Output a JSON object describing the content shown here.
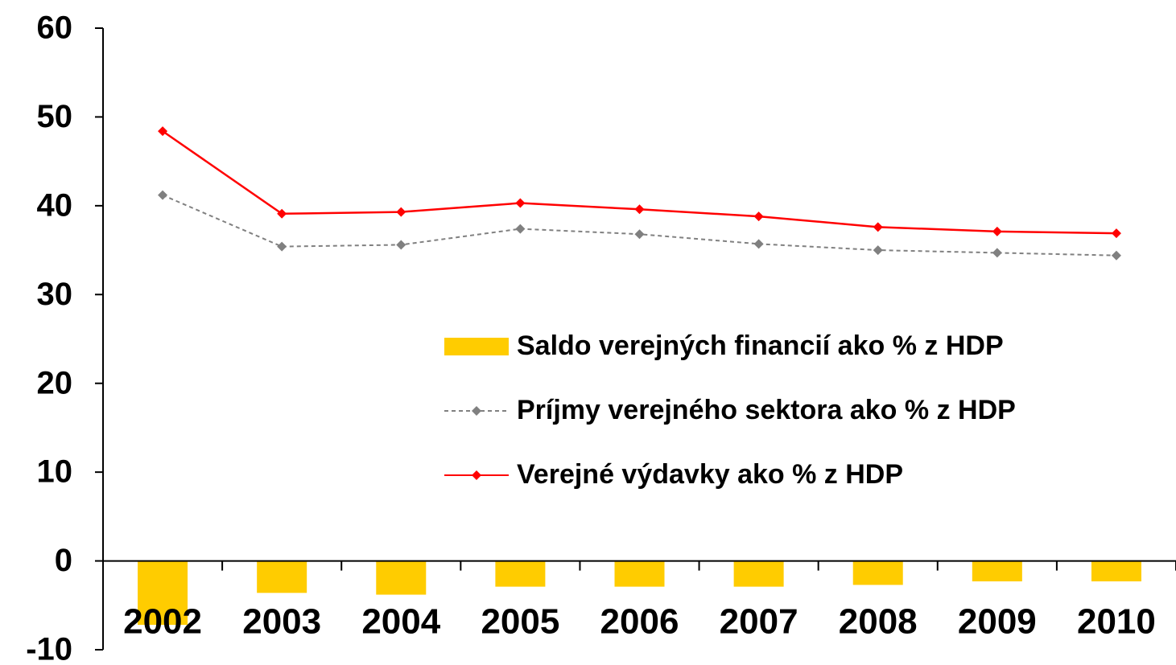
{
  "chart_data": {
    "type": "bar-line",
    "categories": [
      "2002",
      "2003",
      "2004",
      "2005",
      "2006",
      "2007",
      "2008",
      "2009",
      "2010"
    ],
    "series": [
      {
        "name": "Saldo verejných financií ako % z HDP",
        "type": "bar",
        "color": "#FFCC00",
        "values": [
          -7.2,
          -3.6,
          -3.8,
          -2.9,
          -2.9,
          -2.9,
          -2.7,
          -2.3,
          -2.3
        ]
      },
      {
        "name": "Príjmy verejného sektora ako % z HDP",
        "type": "line",
        "dash": true,
        "color": "#808080",
        "values": [
          41.2,
          35.4,
          35.6,
          37.4,
          36.8,
          35.7,
          35.0,
          34.7,
          34.4
        ]
      },
      {
        "name": "Verejné výdavky ako % z HDP",
        "type": "line",
        "dash": false,
        "color": "#FF0000",
        "values": [
          48.4,
          39.1,
          39.3,
          40.3,
          39.6,
          38.8,
          37.6,
          37.1,
          36.9
        ]
      }
    ],
    "ylim": [
      -10,
      60
    ],
    "yticks": [
      -10,
      0,
      10,
      20,
      30,
      40,
      50,
      60
    ]
  }
}
